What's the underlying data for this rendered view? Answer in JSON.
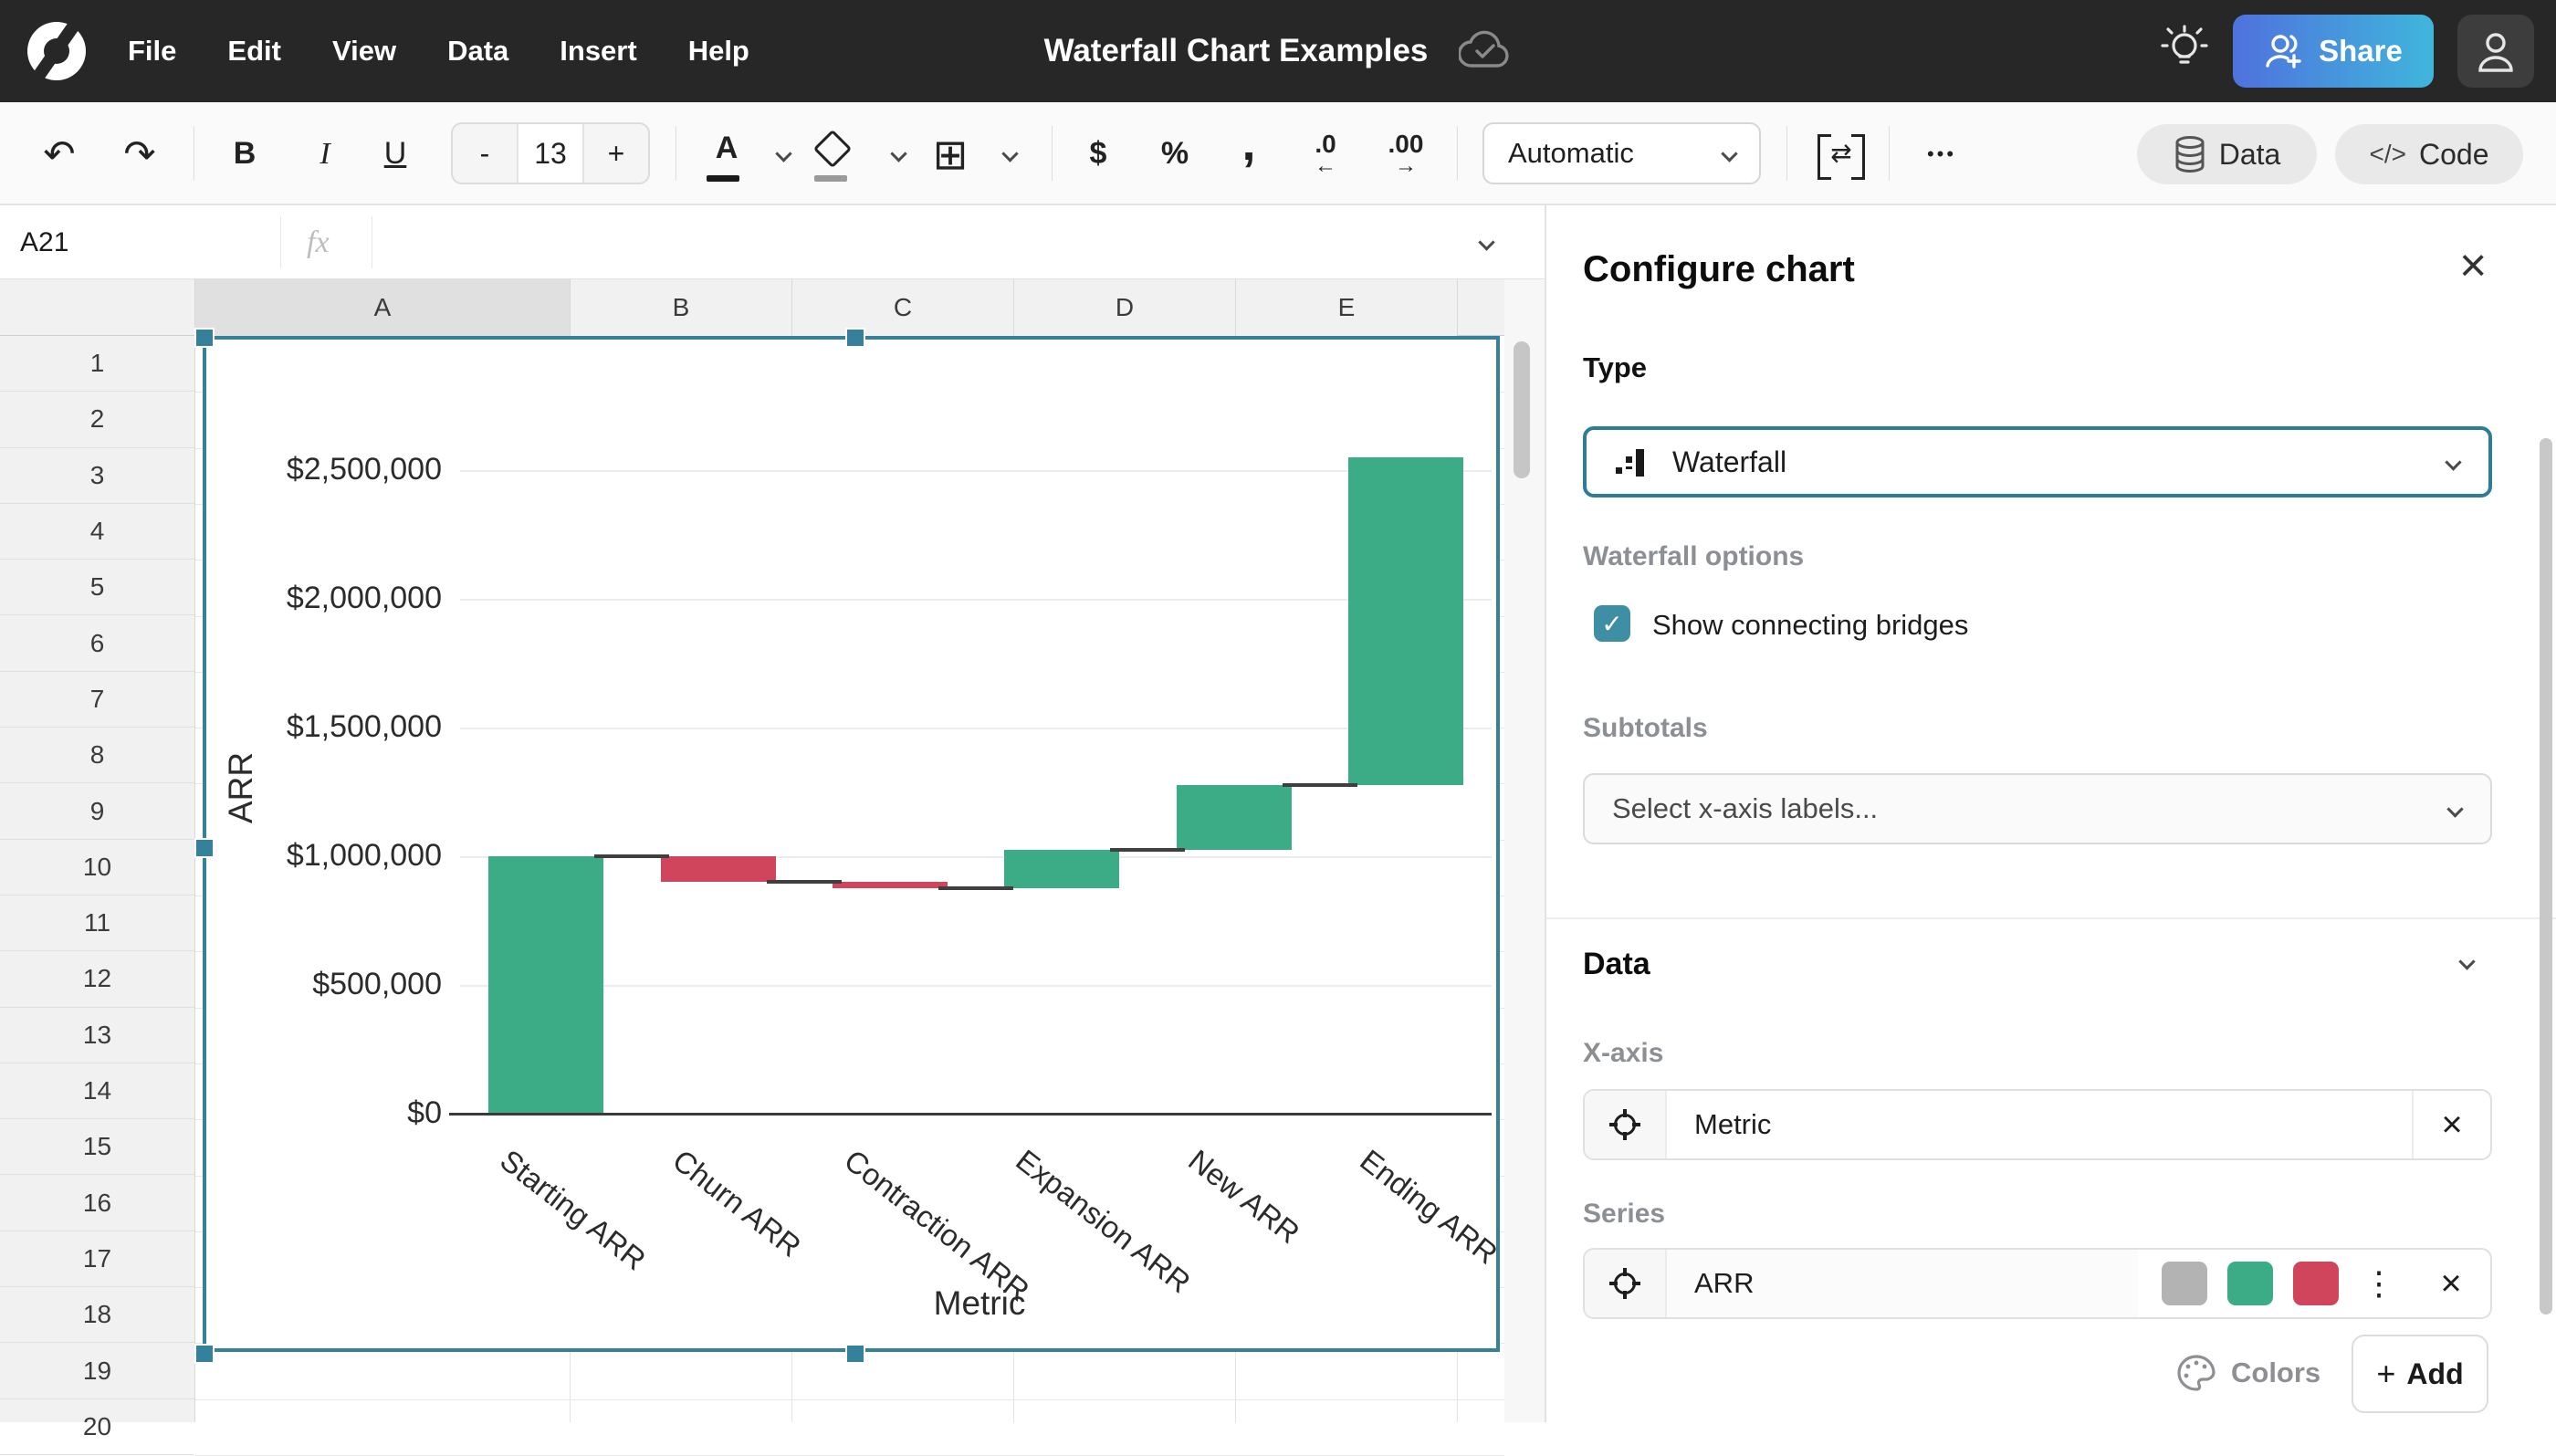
{
  "topbar": {
    "menus": [
      "File",
      "Edit",
      "View",
      "Data",
      "Insert",
      "Help"
    ],
    "title": "Waterfall Chart Examples",
    "share_label": "Share"
  },
  "toolbar": {
    "bold": "B",
    "italic": "I",
    "underline": "U",
    "minus": "-",
    "font_size": "13",
    "plus": "+",
    "text_color": "A",
    "currency": "$",
    "percent": "%",
    "comma": ",",
    "dec_decrease": ".0",
    "dec_decrease_arrow": "←",
    "dec_increase": ".00",
    "dec_increase_arrow": "→",
    "format_selected": "Automatic",
    "merge_arrows": "⇄",
    "more": "•••",
    "data_label": "Data",
    "code_label": "Code"
  },
  "formula_bar": {
    "cell_ref": "A21",
    "fx_label": "fx"
  },
  "sheet": {
    "columns": [
      "A",
      "B",
      "C",
      "D",
      "E"
    ],
    "rows": [
      "1",
      "2",
      "3",
      "4",
      "5",
      "6",
      "7",
      "8",
      "9",
      "10",
      "11",
      "12",
      "13",
      "14",
      "15",
      "16",
      "17",
      "18",
      "19",
      "20"
    ]
  },
  "chart_data": {
    "type": "waterfall",
    "xlabel": "Metric",
    "ylabel": "ARR",
    "categories": [
      "Starting ARR",
      "Churn ARR",
      "Contraction ARR",
      "Expansion ARR",
      "New ARR",
      "Ending ARR"
    ],
    "series": [
      {
        "name": "ARR",
        "values": [
          1000000,
          -100000,
          -25000,
          150000,
          250000,
          1275000
        ]
      }
    ],
    "cumulative_segments": [
      [
        0,
        1000000
      ],
      [
        1000000,
        900000
      ],
      [
        900000,
        875000
      ],
      [
        875000,
        1025000
      ],
      [
        1025000,
        1275000
      ],
      [
        1275000,
        2550000
      ]
    ],
    "segment_directions": [
      "increase",
      "decrease",
      "decrease",
      "increase",
      "increase",
      "increase"
    ],
    "y_ticks": [
      0,
      500000,
      1000000,
      1500000,
      2000000,
      2500000
    ],
    "y_tick_labels": [
      "$0",
      "$500,000",
      "$1,000,000",
      "$1,500,000",
      "$2,000,000",
      "$2,500,000"
    ],
    "ylim": [
      0,
      2700000
    ],
    "grid": true,
    "show_bridges": true,
    "legend": "none",
    "colors": {
      "increase": "#3BAC85",
      "decrease": "#D0455C",
      "bridge": "#3f3f3f"
    }
  },
  "panel": {
    "title": "Configure chart",
    "close": "×",
    "type_label": "Type",
    "type_value": "Waterfall",
    "options_label": "Waterfall options",
    "bridges_label": "Show connecting bridges",
    "bridges_checked": "✓",
    "subtotals_label": "Subtotals",
    "subtotals_placeholder": "Select x-axis labels...",
    "data_label": "Data",
    "xaxis_label": "X-axis",
    "xaxis_value": "Metric",
    "series_label": "Series",
    "series_value": "ARR",
    "swatches": [
      "#B3B3B3",
      "#3BAC85",
      "#D0455C"
    ],
    "kebab": "⋮",
    "remove": "×",
    "colors_label": "Colors",
    "add_label": "Add",
    "add_plus": "+"
  },
  "accent_colors": {
    "selection_teal": "#35809A",
    "checkbox_teal": "#3E8EA4",
    "share_gradient": [
      "#4F72DD",
      "#3FB6DC"
    ],
    "topbar_bg": "#272727"
  }
}
